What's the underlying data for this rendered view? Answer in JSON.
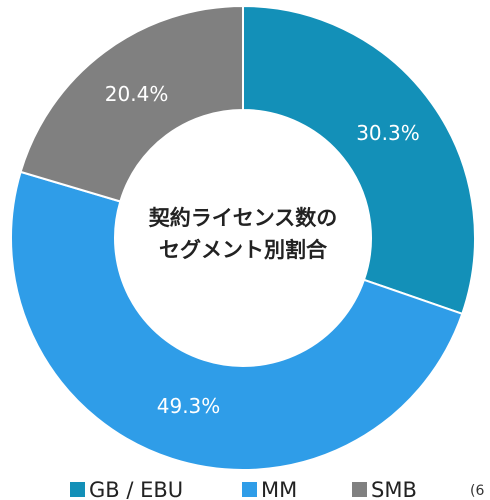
{
  "chart_data": {
    "type": "donut",
    "title": [
      "契約ライセンス数の",
      "セグメント別割合"
    ],
    "categories": [
      "GB / EBU",
      "MM",
      "SMB"
    ],
    "values": [
      30.3,
      49.3,
      20.4
    ],
    "value_labels": [
      "30.3%",
      "49.3%",
      "20.4%"
    ],
    "colors": [
      "#1390b8",
      "#2f9de8",
      "#808080"
    ],
    "legend": "bottom",
    "note": "(6"
  }
}
